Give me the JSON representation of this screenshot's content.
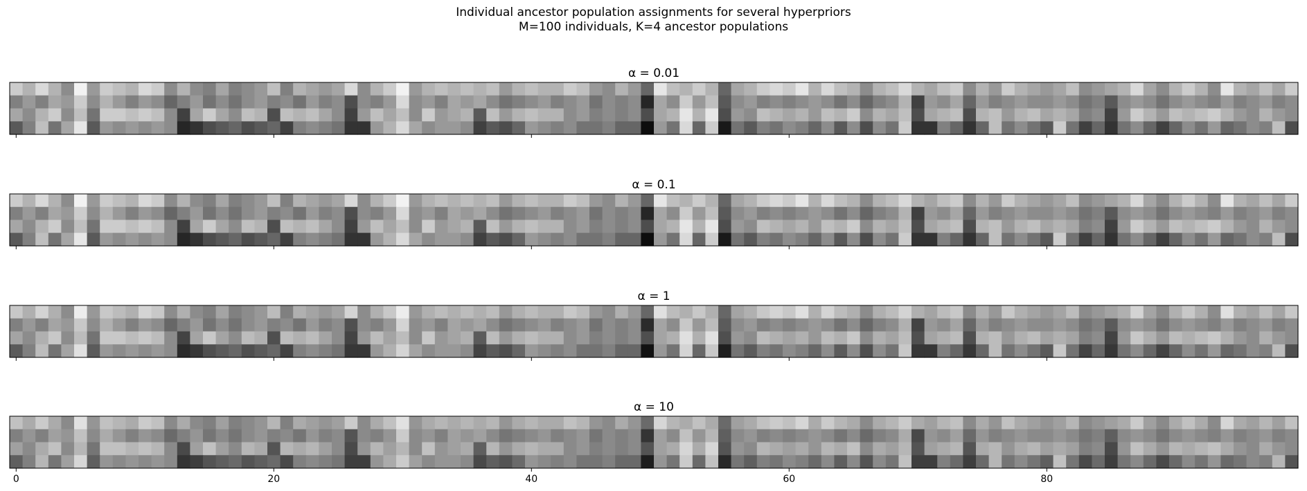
{
  "chart_data": {
    "type": "heatmap",
    "title": "Individual ancestor population assignments for several hyperpriors",
    "subtitle": "M=100 individuals, K=4 ancestor populations",
    "xlabel": "",
    "ylabel": "",
    "colormap": "gray",
    "value_range": [
      0,
      1
    ],
    "shared_x_axis": true,
    "x_ticks": [
      0,
      20,
      40,
      60,
      80
    ],
    "x_range": [
      -0.5,
      99.5
    ],
    "base_matrix": [
      [
        0.8,
        0.7,
        0.85,
        0.7,
        0.55,
        0.95,
        0.6,
        0.8,
        0.75,
        0.7,
        0.85,
        0.8,
        0.55,
        0.7,
        0.55,
        0.5,
        0.65,
        0.5,
        0.55,
        0.6,
        0.75,
        0.5,
        0.7,
        0.65,
        0.6,
        0.65,
        0.85,
        0.55,
        0.7,
        0.8,
        0.95,
        0.6,
        0.7,
        0.75,
        0.7,
        0.75,
        0.7,
        0.75,
        0.6,
        0.7,
        0.75,
        0.7,
        0.7,
        0.8,
        0.75,
        0.6,
        0.55,
        0.7,
        0.6,
        0.4,
        0.9,
        0.75,
        0.7,
        0.8,
        0.7,
        0.4,
        0.65,
        0.7,
        0.8,
        0.85,
        0.8,
        0.9,
        0.7,
        0.85,
        0.75,
        0.7,
        0.55,
        0.7,
        0.75,
        0.85,
        0.7,
        0.65,
        0.75,
        0.8,
        0.55,
        0.7,
        0.6,
        0.8,
        0.7,
        0.65,
        0.6,
        0.65,
        0.75,
        0.55,
        0.6,
        0.65,
        0.7,
        0.85,
        0.65,
        0.55,
        0.7,
        0.8,
        0.7,
        0.55,
        0.9,
        0.7,
        0.65,
        0.75,
        0.65,
        0.8
      ],
      [
        0.5,
        0.6,
        0.5,
        0.65,
        0.6,
        0.8,
        0.55,
        0.7,
        0.6,
        0.5,
        0.6,
        0.55,
        0.4,
        0.5,
        0.6,
        0.45,
        0.55,
        0.45,
        0.55,
        0.6,
        0.5,
        0.55,
        0.45,
        0.6,
        0.5,
        0.55,
        0.3,
        0.55,
        0.5,
        0.6,
        0.85,
        0.55,
        0.6,
        0.5,
        0.65,
        0.6,
        0.65,
        0.55,
        0.45,
        0.5,
        0.55,
        0.6,
        0.5,
        0.55,
        0.6,
        0.45,
        0.55,
        0.5,
        0.55,
        0.15,
        0.65,
        0.55,
        0.8,
        0.6,
        0.75,
        0.35,
        0.55,
        0.6,
        0.5,
        0.55,
        0.5,
        0.55,
        0.6,
        0.55,
        0.45,
        0.55,
        0.4,
        0.5,
        0.55,
        0.7,
        0.25,
        0.6,
        0.55,
        0.65,
        0.4,
        0.6,
        0.5,
        0.55,
        0.6,
        0.55,
        0.55,
        0.6,
        0.55,
        0.45,
        0.5,
        0.35,
        0.55,
        0.6,
        0.55,
        0.45,
        0.55,
        0.6,
        0.55,
        0.5,
        0.6,
        0.5,
        0.55,
        0.6,
        0.5,
        0.55
      ],
      [
        0.65,
        0.55,
        0.7,
        0.8,
        0.55,
        0.75,
        0.45,
        0.8,
        0.8,
        0.75,
        0.8,
        0.75,
        0.55,
        0.25,
        0.65,
        0.8,
        0.65,
        0.55,
        0.75,
        0.7,
        0.3,
        0.75,
        0.7,
        0.75,
        0.65,
        0.55,
        0.25,
        0.6,
        0.75,
        0.65,
        0.75,
        0.55,
        0.8,
        0.6,
        0.65,
        0.7,
        0.35,
        0.75,
        0.6,
        0.7,
        0.75,
        0.7,
        0.7,
        0.55,
        0.6,
        0.5,
        0.55,
        0.5,
        0.55,
        0.3,
        0.65,
        0.7,
        0.9,
        0.7,
        0.9,
        0.3,
        0.6,
        0.55,
        0.75,
        0.7,
        0.65,
        0.7,
        0.6,
        0.75,
        0.7,
        0.8,
        0.55,
        0.7,
        0.65,
        0.75,
        0.3,
        0.65,
        0.7,
        0.75,
        0.3,
        0.7,
        0.75,
        0.6,
        0.7,
        0.75,
        0.65,
        0.7,
        0.65,
        0.5,
        0.55,
        0.25,
        0.6,
        0.8,
        0.7,
        0.6,
        0.75,
        0.7,
        0.75,
        0.8,
        0.7,
        0.6,
        0.55,
        0.7,
        0.6,
        0.55
      ],
      [
        0.35,
        0.5,
        0.75,
        0.45,
        0.65,
        0.9,
        0.35,
        0.6,
        0.55,
        0.6,
        0.55,
        0.6,
        0.55,
        0.15,
        0.2,
        0.3,
        0.35,
        0.4,
        0.3,
        0.35,
        0.4,
        0.25,
        0.5,
        0.55,
        0.5,
        0.45,
        0.2,
        0.2,
        0.6,
        0.7,
        0.85,
        0.65,
        0.55,
        0.6,
        0.6,
        0.55,
        0.25,
        0.35,
        0.3,
        0.4,
        0.6,
        0.55,
        0.5,
        0.55,
        0.45,
        0.45,
        0.5,
        0.4,
        0.4,
        0.05,
        0.6,
        0.45,
        0.85,
        0.4,
        0.8,
        0.1,
        0.45,
        0.35,
        0.5,
        0.45,
        0.55,
        0.5,
        0.4,
        0.55,
        0.35,
        0.55,
        0.3,
        0.55,
        0.45,
        0.8,
        0.2,
        0.2,
        0.5,
        0.4,
        0.2,
        0.4,
        0.75,
        0.45,
        0.55,
        0.45,
        0.35,
        0.8,
        0.45,
        0.25,
        0.4,
        0.2,
        0.45,
        0.55,
        0.4,
        0.25,
        0.4,
        0.55,
        0.45,
        0.6,
        0.4,
        0.45,
        0.55,
        0.5,
        0.75,
        0.3
      ]
    ],
    "panels": [
      {
        "title": "α = 0.01",
        "alpha": 0.01,
        "contrast": 1.0
      },
      {
        "title": "α = 0.1",
        "alpha": 0.1,
        "contrast": 1.0
      },
      {
        "title": "α = 1",
        "alpha": 1,
        "contrast": 0.95
      },
      {
        "title": "α = 10",
        "alpha": 10,
        "contrast": 0.85
      }
    ]
  }
}
